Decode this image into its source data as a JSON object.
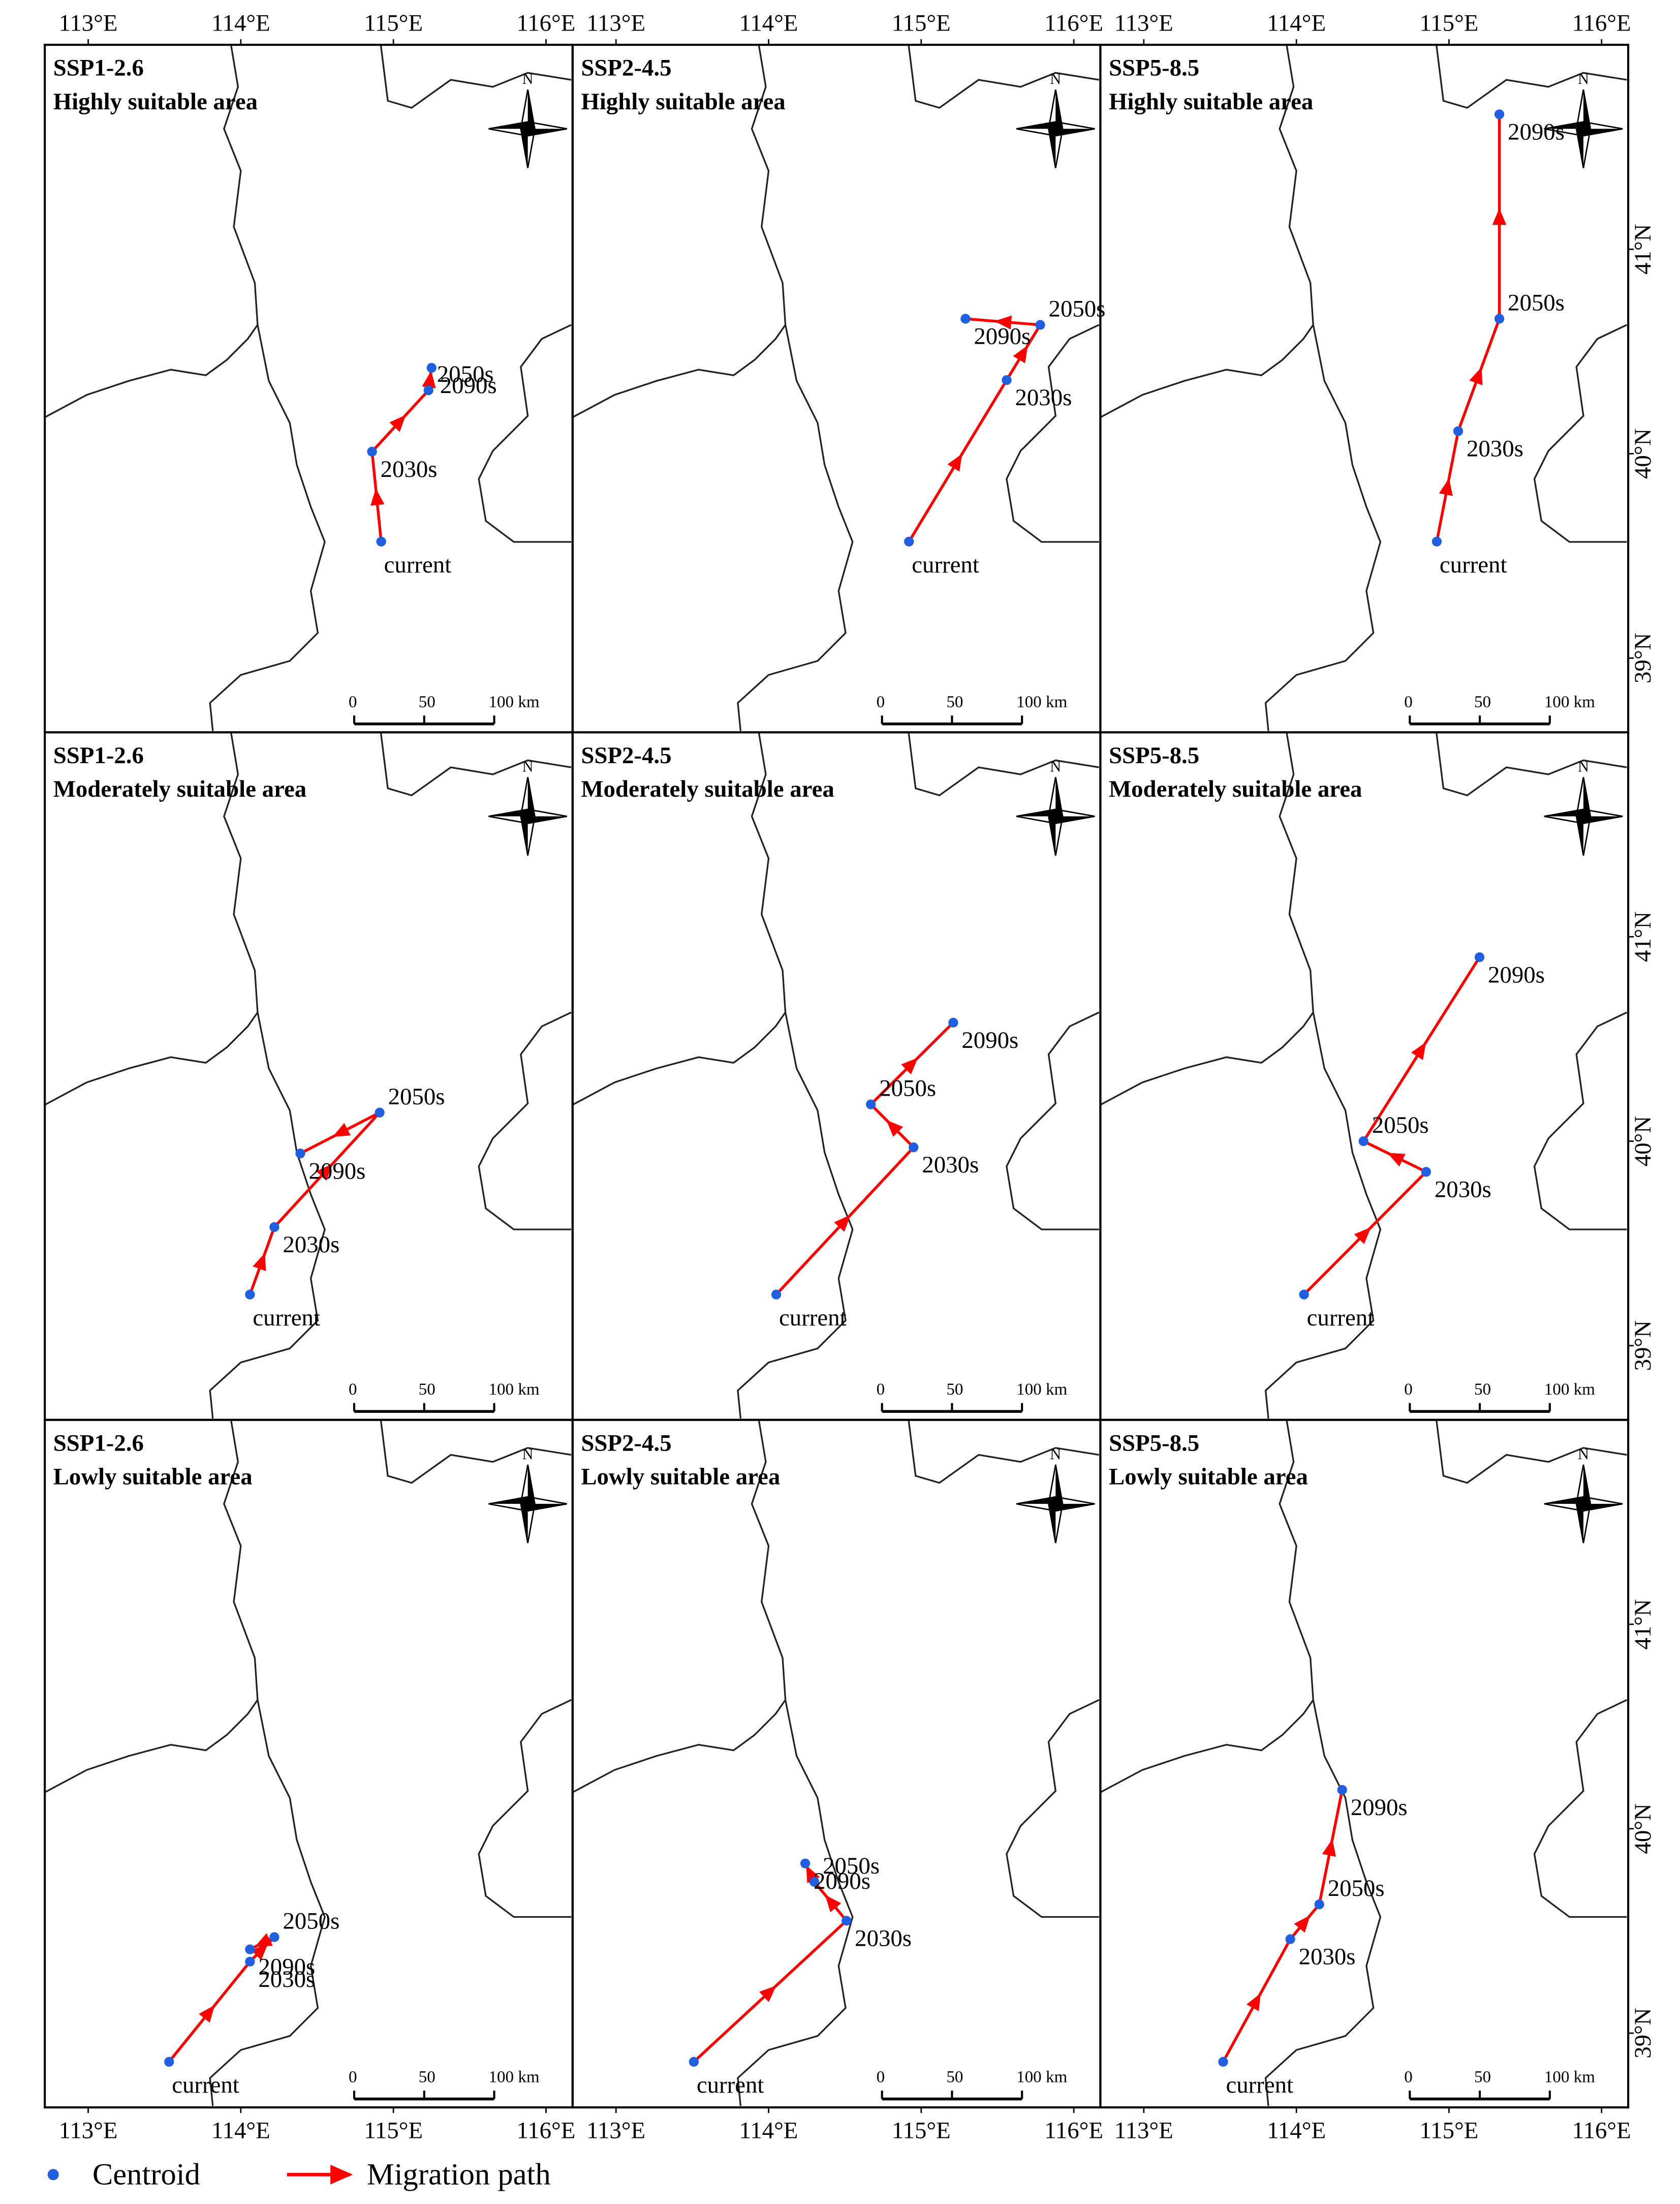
{
  "map": {
    "lon_ticks": [
      {
        "value": 113,
        "label": "113°E"
      },
      {
        "value": 114,
        "label": "114°E"
      },
      {
        "value": 115,
        "label": "115°E"
      },
      {
        "value": 116,
        "label": "116°E"
      }
    ],
    "lat_ticks": [
      {
        "value": 39,
        "label": "39°N"
      },
      {
        "value": 40,
        "label": "40°N"
      },
      {
        "value": 41,
        "label": "41°N"
      }
    ],
    "north": "N",
    "scale_bar": [
      0,
      50,
      {
        "value": 100,
        "label": "100 km"
      }
    ],
    "legend": {
      "centroid": "Centroid",
      "path": "Migration path"
    },
    "panels": [
      {
        "scenario": "SSP1-2.6",
        "area": "Highly suitable area",
        "centroids": [
          {
            "label": "current",
            "lon": 114.92,
            "lat": 39.57
          },
          {
            "label": "2030s",
            "lon": 114.86,
            "lat": 40.01
          },
          {
            "label": "2050s",
            "lon": 115.23,
            "lat": 40.31
          },
          {
            "label": "2090s",
            "lon": 115.25,
            "lat": 40.42
          }
        ]
      },
      {
        "scenario": "SSP2-4.5",
        "area": "Highly suitable area",
        "centroids": [
          {
            "label": "current",
            "lon": 114.92,
            "lat": 39.57
          },
          {
            "label": "2030s",
            "lon": 115.56,
            "lat": 40.36
          },
          {
            "label": "2050s",
            "lon": 115.78,
            "lat": 40.63
          },
          {
            "label": "2090s",
            "lon": 115.29,
            "lat": 40.66
          }
        ]
      },
      {
        "scenario": "SSP5-8.5",
        "area": "Highly suitable area",
        "centroids": [
          {
            "label": "current",
            "lon": 114.92,
            "lat": 39.57
          },
          {
            "label": "2030s",
            "lon": 115.06,
            "lat": 40.11
          },
          {
            "label": "2050s",
            "lon": 115.33,
            "lat": 40.66
          },
          {
            "label": "2090s",
            "lon": 115.33,
            "lat": 41.66
          }
        ]
      },
      {
        "scenario": "SSP1-2.6",
        "area": "Moderately suitable area",
        "centroids": [
          {
            "label": "current",
            "lon": 114.06,
            "lat": 39.25
          },
          {
            "label": "2030s",
            "lon": 114.22,
            "lat": 39.58
          },
          {
            "label": "2050s",
            "lon": 114.91,
            "lat": 40.14
          },
          {
            "label": "2090s",
            "lon": 114.39,
            "lat": 39.94
          }
        ]
      },
      {
        "scenario": "SSP2-4.5",
        "area": "Moderately suitable area",
        "centroids": [
          {
            "label": "current",
            "lon": 114.05,
            "lat": 39.25
          },
          {
            "label": "2030s",
            "lon": 114.95,
            "lat": 39.97
          },
          {
            "label": "2050s",
            "lon": 114.67,
            "lat": 40.18
          },
          {
            "label": "2090s",
            "lon": 115.21,
            "lat": 40.58
          }
        ]
      },
      {
        "scenario": "SSP5-8.5",
        "area": "Moderately suitable area",
        "centroids": [
          {
            "label": "current",
            "lon": 114.05,
            "lat": 39.25
          },
          {
            "label": "2030s",
            "lon": 114.85,
            "lat": 39.85
          },
          {
            "label": "2050s",
            "lon": 114.44,
            "lat": 40.0
          },
          {
            "label": "2090s",
            "lon": 115.2,
            "lat": 40.9
          }
        ]
      },
      {
        "scenario": "SSP1-2.6",
        "area": "Lowly suitable area",
        "centroids": [
          {
            "label": "current",
            "lon": 113.53,
            "lat": 38.86
          },
          {
            "label": "2030s",
            "lon": 114.06,
            "lat": 39.35
          },
          {
            "label": "2050s",
            "lon": 114.22,
            "lat": 39.47
          },
          {
            "label": "2090s",
            "lon": 114.06,
            "lat": 39.41
          }
        ]
      },
      {
        "scenario": "SSP2-4.5",
        "area": "Lowly suitable area",
        "centroids": [
          {
            "label": "current",
            "lon": 113.51,
            "lat": 38.86
          },
          {
            "label": "2030s",
            "lon": 114.51,
            "lat": 39.55
          },
          {
            "label": "2050s",
            "lon": 114.3,
            "lat": 39.74
          },
          {
            "label": "2090s",
            "lon": 114.24,
            "lat": 39.83
          }
        ]
      },
      {
        "scenario": "SSP5-8.5",
        "area": "Lowly suitable area",
        "centroids": [
          {
            "label": "current",
            "lon": 113.52,
            "lat": 38.86
          },
          {
            "label": "2030s",
            "lon": 113.96,
            "lat": 39.46
          },
          {
            "label": "2050s",
            "lon": 114.15,
            "lat": 39.63
          },
          {
            "label": "2090s",
            "lon": 114.3,
            "lat": 40.19
          }
        ]
      }
    ]
  }
}
